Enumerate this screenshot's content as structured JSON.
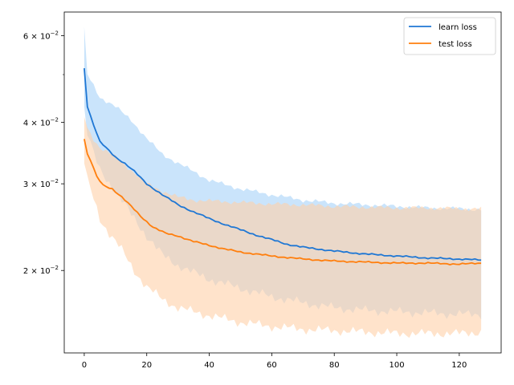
{
  "chart_data": {
    "type": "line",
    "title": "",
    "xlabel": "",
    "ylabel": "",
    "yscale": "log",
    "xlim": [
      -6.4,
      133.4
    ],
    "ylim": [
      0.0136,
      0.067
    ],
    "grid": false,
    "legend_position": "top-right",
    "x_ticks": [
      0,
      20,
      40,
      60,
      80,
      100,
      120
    ],
    "x_tick_labels": [
      "0",
      "20",
      "40",
      "60",
      "80",
      "100",
      "120"
    ],
    "y_major_ticks": [
      0.02,
      0.03,
      0.04,
      0.06
    ],
    "y_tick_labels": [
      {
        "mantissa": "2",
        "exponent": "−2"
      },
      {
        "mantissa": "3",
        "exponent": "−2"
      },
      {
        "mantissa": "4",
        "exponent": "−2"
      },
      {
        "mantissa": "6",
        "exponent": "−2"
      }
    ],
    "y_minor_ticks": [
      0.05
    ],
    "x_range": [
      0,
      127
    ],
    "series": [
      {
        "name": "learn loss",
        "color": "#1f77d4",
        "band_color": "#9fcdf8",
        "mean": [
          [
            0,
            0.0515
          ],
          [
            1,
            0.043
          ],
          [
            3,
            0.0395
          ],
          [
            5,
            0.0365
          ],
          [
            7,
            0.0355
          ],
          [
            10,
            0.034
          ],
          [
            13,
            0.033
          ],
          [
            16,
            0.0318
          ],
          [
            20,
            0.03
          ],
          [
            25,
            0.0285
          ],
          [
            30,
            0.0272
          ],
          [
            35,
            0.0263
          ],
          [
            40,
            0.0255
          ],
          [
            45,
            0.0248
          ],
          [
            50,
            0.0242
          ],
          [
            55,
            0.0236
          ],
          [
            60,
            0.0231
          ],
          [
            65,
            0.0226
          ],
          [
            70,
            0.0223
          ],
          [
            75,
            0.0221
          ],
          [
            80,
            0.0219
          ],
          [
            90,
            0.0216
          ],
          [
            100,
            0.0214
          ],
          [
            110,
            0.0212
          ],
          [
            120,
            0.0211
          ],
          [
            127,
            0.021
          ]
        ],
        "upper": [
          [
            0,
            0.0625
          ],
          [
            1,
            0.05
          ],
          [
            3,
            0.0475
          ],
          [
            5,
            0.045
          ],
          [
            10,
            0.043
          ],
          [
            15,
            0.0405
          ],
          [
            20,
            0.037
          ],
          [
            25,
            0.0345
          ],
          [
            30,
            0.033
          ],
          [
            35,
            0.0318
          ],
          [
            40,
            0.0305
          ],
          [
            50,
            0.0293
          ],
          [
            60,
            0.0285
          ],
          [
            70,
            0.0278
          ],
          [
            80,
            0.0274
          ],
          [
            90,
            0.0272
          ],
          [
            100,
            0.027
          ],
          [
            110,
            0.0268
          ],
          [
            120,
            0.0267
          ],
          [
            127,
            0.0266
          ]
        ],
        "lower": [
          [
            0,
            0.043
          ],
          [
            1,
            0.038
          ],
          [
            3,
            0.0345
          ],
          [
            5,
            0.032
          ],
          [
            10,
            0.029
          ],
          [
            15,
            0.026
          ],
          [
            20,
            0.0235
          ],
          [
            25,
            0.0215
          ],
          [
            30,
            0.0205
          ],
          [
            35,
            0.0198
          ],
          [
            40,
            0.0192
          ],
          [
            50,
            0.0184
          ],
          [
            60,
            0.0177
          ],
          [
            70,
            0.0172
          ],
          [
            80,
            0.0168
          ],
          [
            90,
            0.0166
          ],
          [
            100,
            0.0165
          ],
          [
            110,
            0.0164
          ],
          [
            120,
            0.0163
          ],
          [
            127,
            0.0163
          ]
        ]
      },
      {
        "name": "test loss",
        "color": "#ff7f0e",
        "band_color": "#ffd1a8",
        "mean": [
          [
            0,
            0.037
          ],
          [
            1,
            0.0345
          ],
          [
            2,
            0.0335
          ],
          [
            4,
            0.031
          ],
          [
            6,
            0.0298
          ],
          [
            9,
            0.0293
          ],
          [
            12,
            0.0282
          ],
          [
            15,
            0.027
          ],
          [
            18,
            0.0258
          ],
          [
            22,
            0.0245
          ],
          [
            26,
            0.0238
          ],
          [
            30,
            0.0235
          ],
          [
            35,
            0.0229
          ],
          [
            40,
            0.0225
          ],
          [
            45,
            0.0221
          ],
          [
            50,
            0.0218
          ],
          [
            55,
            0.0216
          ],
          [
            60,
            0.0214
          ],
          [
            70,
            0.0211
          ],
          [
            80,
            0.0209
          ],
          [
            90,
            0.0208
          ],
          [
            100,
            0.0207
          ],
          [
            110,
            0.0207
          ],
          [
            120,
            0.0206
          ],
          [
            127,
            0.0207
          ]
        ],
        "upper": [
          [
            0,
            0.041
          ],
          [
            1,
            0.039
          ],
          [
            3,
            0.037
          ],
          [
            5,
            0.0355
          ],
          [
            10,
            0.034
          ],
          [
            15,
            0.032
          ],
          [
            20,
            0.03
          ],
          [
            25,
            0.029
          ],
          [
            30,
            0.0282
          ],
          [
            35,
            0.0278
          ],
          [
            40,
            0.0277
          ],
          [
            50,
            0.0275
          ],
          [
            60,
            0.0273
          ],
          [
            70,
            0.0272
          ],
          [
            80,
            0.027
          ],
          [
            90,
            0.0269
          ],
          [
            100,
            0.0268
          ],
          [
            110,
            0.0268
          ],
          [
            120,
            0.0267
          ],
          [
            127,
            0.0267
          ]
        ],
        "lower": [
          [
            0,
            0.033
          ],
          [
            1,
            0.0305
          ],
          [
            3,
            0.028
          ],
          [
            5,
            0.0255
          ],
          [
            8,
            0.0238
          ],
          [
            12,
            0.022
          ],
          [
            16,
            0.02
          ],
          [
            20,
            0.0185
          ],
          [
            25,
            0.0175
          ],
          [
            30,
            0.0168
          ],
          [
            35,
            0.0165
          ],
          [
            40,
            0.0162
          ],
          [
            50,
            0.0157
          ],
          [
            60,
            0.0154
          ],
          [
            70,
            0.0152
          ],
          [
            80,
            0.0151
          ],
          [
            90,
            0.015
          ],
          [
            100,
            0.0149
          ],
          [
            110,
            0.0149
          ],
          [
            120,
            0.0149
          ],
          [
            127,
            0.015
          ]
        ]
      }
    ]
  }
}
